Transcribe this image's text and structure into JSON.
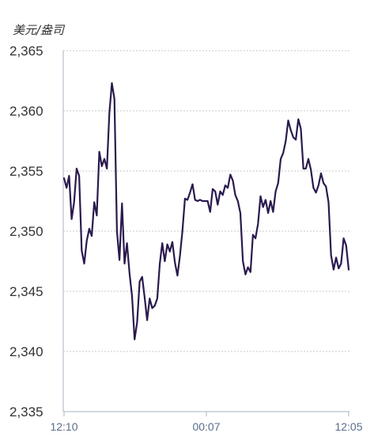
{
  "chart_data": {
    "type": "line",
    "unit_label": "美元/盎司",
    "ylim": [
      2335,
      2365
    ],
    "yticks": [
      "2,365",
      "2,360",
      "2,355",
      "2,350",
      "2,345",
      "2,340",
      "2,335"
    ],
    "ytick_values": [
      2365,
      2360,
      2355,
      2350,
      2345,
      2340,
      2335
    ],
    "xticks": [
      "12:10",
      "00:07",
      "12:05"
    ],
    "xtick_positions": [
      0,
      0.5,
      1
    ],
    "grid": true,
    "line_color": "#2a1a4e",
    "series": [
      {
        "values": [
          2354.4,
          2353.6,
          2354.6,
          2351.0,
          2352.4,
          2355.2,
          2354.6,
          2348.4,
          2347.3,
          2349.2,
          2350.2,
          2349.6,
          2352.4,
          2351.3,
          2356.6,
          2355.4,
          2356.0,
          2355.2,
          2359.8,
          2362.3,
          2361.0,
          2350.0,
          2347.6,
          2352.3,
          2347.3,
          2349.0,
          2346.5,
          2344.6,
          2341.0,
          2342.4,
          2345.8,
          2346.2,
          2344.5,
          2342.6,
          2344.4,
          2343.6,
          2343.8,
          2344.4,
          2347.3,
          2349.0,
          2347.5,
          2348.9,
          2348.3,
          2349.1,
          2347.4,
          2346.3,
          2347.9,
          2350.0,
          2352.7,
          2352.6,
          2353.2,
          2353.9,
          2352.6,
          2352.5,
          2352.6,
          2352.5,
          2352.5,
          2352.5,
          2351.6,
          2353.5,
          2353.3,
          2352.2,
          2353.3,
          2353.0,
          2353.8,
          2353.6,
          2354.7,
          2354.2,
          2353.0,
          2352.5,
          2351.5,
          2347.5,
          2346.4,
          2347.0,
          2346.6,
          2349.7,
          2349.4,
          2350.6,
          2352.9,
          2352.0,
          2352.6,
          2351.5,
          2352.5,
          2351.6,
          2353.3,
          2354.0,
          2356.0,
          2356.5,
          2357.5,
          2359.2,
          2358.4,
          2357.8,
          2357.6,
          2359.3,
          2358.5,
          2355.2,
          2355.2,
          2356.0,
          2355.1,
          2353.6,
          2353.2,
          2353.8,
          2354.8,
          2354.0,
          2353.7,
          2352.4,
          2348.0,
          2346.8,
          2347.8,
          2346.9,
          2347.3,
          2349.4,
          2348.8,
          2346.8
        ]
      }
    ]
  }
}
